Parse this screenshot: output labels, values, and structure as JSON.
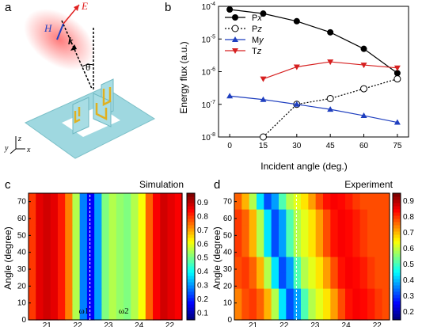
{
  "panels": {
    "a": {
      "letter": "a",
      "labels": {
        "E": "E",
        "H": "H",
        "k": "k",
        "theta": "θ",
        "axis_y": "y",
        "axis_z": "z",
        "axis_x": "x"
      }
    },
    "b": {
      "letter": "b"
    },
    "c": {
      "letter": "c"
    },
    "d": {
      "letter": "d"
    }
  },
  "chart_data": [
    {
      "id": "b",
      "type": "line",
      "title": "",
      "xlabel": "Incident angle (deg.)",
      "ylabel": "Energy flux (a.u.)",
      "xlim": [
        -5,
        80
      ],
      "ylim_log10": [
        -8,
        -4
      ],
      "yscale": "log",
      "xticks": [
        0,
        15,
        30,
        45,
        60,
        75
      ],
      "yticks": [
        {
          "exp": -4,
          "label_base": "10",
          "label_exp": "-4"
        },
        {
          "exp": -5,
          "label_base": "10",
          "label_exp": "-5"
        },
        {
          "exp": -6,
          "label_base": "10",
          "label_exp": "-6"
        },
        {
          "exp": -7,
          "label_base": "10",
          "label_exp": "-7"
        },
        {
          "exp": -8,
          "label_base": "10",
          "label_exp": "-8"
        }
      ],
      "legend_position": "top-right",
      "series": [
        {
          "name": "Px",
          "name_base": "P",
          "name_sub": "x",
          "color": "#000000",
          "marker": "filled-circle",
          "line": "solid",
          "x": [
            0,
            15,
            30,
            45,
            60,
            75
          ],
          "y": [
            8e-05,
            6e-05,
            3.5e-05,
            1.6e-05,
            5e-06,
            9e-07
          ]
        },
        {
          "name": "Pz",
          "name_base": "P",
          "name_sub": "z",
          "color": "#000000",
          "marker": "open-circle",
          "line": "dotted",
          "x": [
            15,
            30,
            45,
            60,
            75
          ],
          "y": [
            1e-08,
            1e-07,
            1.5e-07,
            3e-07,
            6e-07
          ]
        },
        {
          "name": "My",
          "name_base": "M",
          "name_sub": "y",
          "color": "#1f3fbf",
          "marker": "triangle-up",
          "line": "solid",
          "x": [
            0,
            15,
            30,
            45,
            60,
            75
          ],
          "y": [
            1.8e-07,
            1.4e-07,
            1e-07,
            7e-08,
            4.5e-08,
            2.8e-08
          ]
        },
        {
          "name": "Tz",
          "name_base": "T",
          "name_sub": "z",
          "color": "#d62020",
          "marker": "triangle-down",
          "line": "solid",
          "x": [
            15,
            30,
            45,
            60,
            75
          ],
          "y": [
            6e-07,
            1.4e-06,
            2e-06,
            1.6e-06,
            1.3e-06
          ]
        }
      ]
    },
    {
      "id": "c",
      "type": "heatmap",
      "title": "Simulation",
      "xlabel": "",
      "ylabel": "Angle (degree)",
      "yticks": [
        0,
        10,
        20,
        30,
        40,
        50,
        60,
        70
      ],
      "xtick_labels_partial": [
        "21",
        "22",
        "23",
        "24",
        "22"
      ],
      "colorbar_ticks": [
        "0.9",
        "0.8",
        "0.7",
        "0.6",
        "0.5",
        "0.4",
        "0.3",
        "0.2",
        "0.1"
      ],
      "colorbar_range": [
        0.05,
        0.97
      ],
      "markers": [
        "ω1",
        "ω2"
      ],
      "profile_at_0deg": [
        0.82,
        0.9,
        0.92,
        0.9,
        0.85,
        0.75,
        0.55,
        0.25,
        0.12,
        0.28,
        0.5,
        0.55,
        0.52,
        0.5,
        0.55,
        0.62,
        0.78,
        0.88,
        0.92,
        0.9,
        0.88
      ],
      "dip_positions": [
        0.38,
        0.62
      ]
    },
    {
      "id": "d",
      "type": "heatmap",
      "title": "Experiment",
      "xlabel": "",
      "ylabel": "Angle (degree)",
      "yticks": [
        0,
        10,
        20,
        30,
        40,
        50,
        60,
        70
      ],
      "xtick_labels_partial": [
        "21",
        "22",
        "23",
        "24",
        "22"
      ],
      "colorbar_ticks": [
        "0.9",
        "0.8",
        "0.7",
        "0.6",
        "0.5",
        "0.4",
        "0.3",
        "0.2"
      ],
      "colorbar_range": [
        0.15,
        0.95
      ],
      "profile_at_0deg": [
        0.75,
        0.8,
        0.82,
        0.78,
        0.7,
        0.55,
        0.35,
        0.2,
        0.28,
        0.45,
        0.55,
        0.6,
        0.65,
        0.72,
        0.8,
        0.86,
        0.88,
        0.87,
        0.85,
        0.82,
        0.8
      ]
    }
  ]
}
